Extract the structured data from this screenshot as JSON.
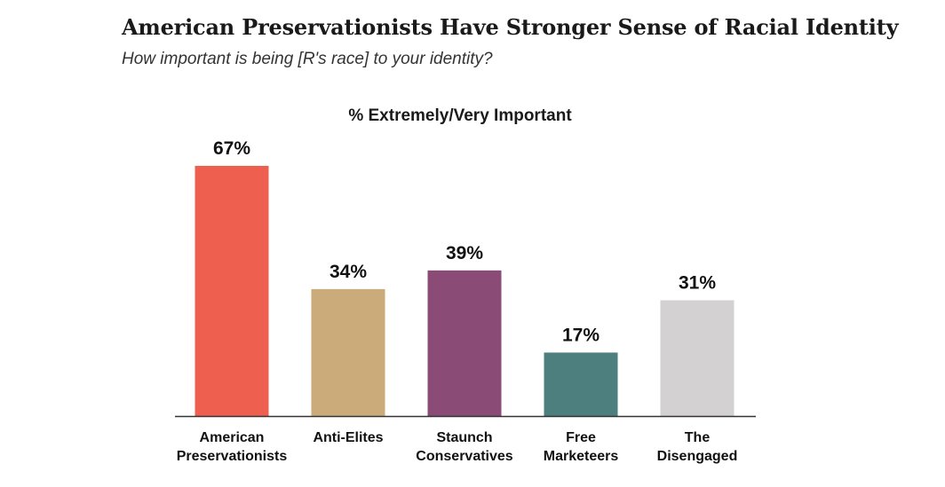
{
  "chart_data": {
    "type": "bar",
    "title": "American Preservationists Have Stronger Sense of Racial Identity",
    "subtitle": "How important is being [R's race] to your identity?",
    "chart_title": "% Extremely/Very Important",
    "categories": [
      [
        "American",
        "Preservationists"
      ],
      [
        "Anti-Elites"
      ],
      [
        "Staunch",
        "Conservatives"
      ],
      [
        "Free",
        "Marketeers"
      ],
      [
        "The",
        "Disengaged"
      ]
    ],
    "values": [
      67,
      34,
      39,
      17,
      31
    ],
    "value_labels": [
      "67%",
      "34%",
      "39%",
      "17%",
      "31%"
    ],
    "colors": [
      "#EF5F50",
      "#CBAB7A",
      "#8A4B77",
      "#4C7F7D",
      "#D3D1D2"
    ],
    "ylim": [
      0,
      67
    ],
    "grid": false,
    "legend": "none",
    "xlabel": "",
    "ylabel": ""
  }
}
